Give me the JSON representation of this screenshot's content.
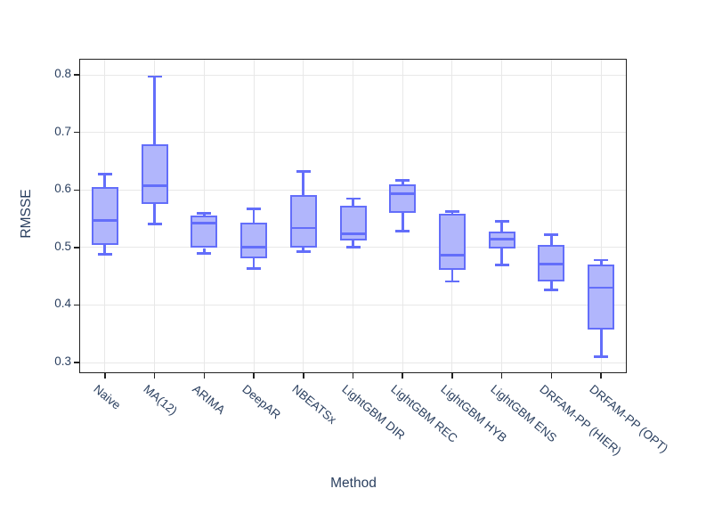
{
  "chart_data": {
    "type": "box",
    "title": "",
    "xlabel": "Method",
    "ylabel": "RMSSE",
    "ylim": [
      0.283,
      0.8265
    ],
    "yticks": [
      0.3,
      0.4,
      0.5,
      0.6,
      0.7,
      0.8
    ],
    "grid": true,
    "legend": false,
    "categories": [
      "Naive",
      "MA(12)",
      "ARIMA",
      "DeepAR",
      "NBEATSx",
      "LightGBM DIR",
      "LightGBM REC",
      "LightGBM HYB",
      "LightGBM ENS",
      "DRFAM-PP (HIER)",
      "DRFAM-PP (OPT)"
    ],
    "boxes": [
      {
        "label": "Naive",
        "whisker_low": 0.488,
        "q1": 0.505,
        "median": 0.547,
        "q3": 0.605,
        "whisker_high": 0.628
      },
      {
        "label": "MA(12)",
        "whisker_low": 0.541,
        "q1": 0.576,
        "median": 0.608,
        "q3": 0.679,
        "whisker_high": 0.797
      },
      {
        "label": "ARIMA",
        "whisker_low": 0.49,
        "q1": 0.499,
        "median": 0.542,
        "q3": 0.555,
        "whisker_high": 0.559
      },
      {
        "label": "DeepAR",
        "whisker_low": 0.463,
        "q1": 0.481,
        "median": 0.501,
        "q3": 0.543,
        "whisker_high": 0.567
      },
      {
        "label": "NBEATSx",
        "whisker_low": 0.493,
        "q1": 0.5,
        "median": 0.534,
        "q3": 0.591,
        "whisker_high": 0.632
      },
      {
        "label": "LightGBM DIR",
        "whisker_low": 0.5,
        "q1": 0.512,
        "median": 0.524,
        "q3": 0.572,
        "whisker_high": 0.585
      },
      {
        "label": "LightGBM REC",
        "whisker_low": 0.529,
        "q1": 0.56,
        "median": 0.594,
        "q3": 0.61,
        "whisker_high": 0.617
      },
      {
        "label": "LightGBM HYB",
        "whisker_low": 0.441,
        "q1": 0.461,
        "median": 0.487,
        "q3": 0.558,
        "whisker_high": 0.562
      },
      {
        "label": "LightGBM ENS",
        "whisker_low": 0.47,
        "q1": 0.498,
        "median": 0.515,
        "q3": 0.527,
        "whisker_high": 0.546
      },
      {
        "label": "DRFAM-PP (HIER)",
        "whisker_low": 0.426,
        "q1": 0.441,
        "median": 0.471,
        "q3": 0.505,
        "whisker_high": 0.522
      },
      {
        "label": "DRFAM-PP (OPT)",
        "whisker_low": 0.31,
        "q1": 0.357,
        "median": 0.43,
        "q3": 0.471,
        "whisker_high": 0.478
      }
    ],
    "colors": {
      "box_border": "#636EFA",
      "box_fill": "#B1B6FC",
      "grid": "#E8E8E8",
      "axis": "#222222",
      "font": "#2A3F5F",
      "background": "#FFFFFF"
    }
  }
}
